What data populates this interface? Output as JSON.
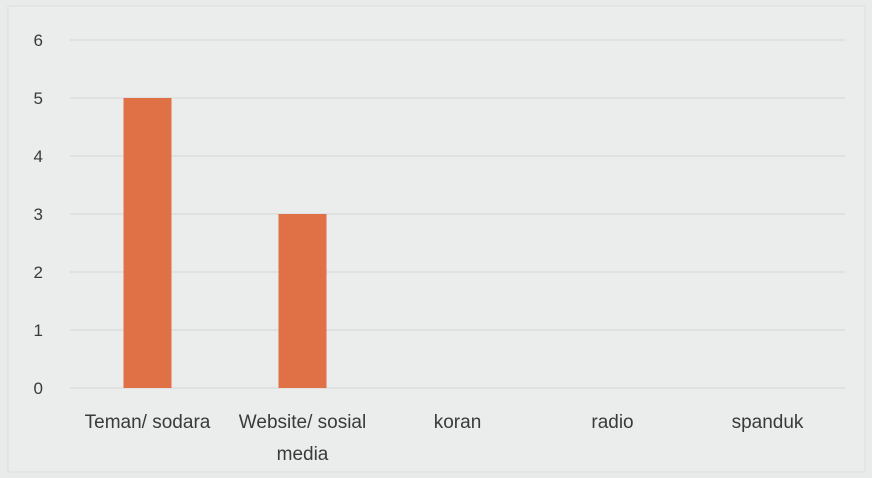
{
  "chart_data": {
    "type": "bar",
    "categories": [
      [
        "Teman/ sodara"
      ],
      [
        "Website/ sosial",
        "media"
      ],
      [
        "koran"
      ],
      [
        "radio"
      ],
      [
        "spanduk"
      ]
    ],
    "values": [
      5,
      3,
      0,
      0,
      0
    ],
    "yticks": [
      "0",
      "1",
      "2",
      "3",
      "4",
      "5",
      "6"
    ],
    "ylim": [
      0,
      6
    ],
    "grid": true,
    "bar_color": "#e07046",
    "grid_color": "#d4d6d6"
  }
}
